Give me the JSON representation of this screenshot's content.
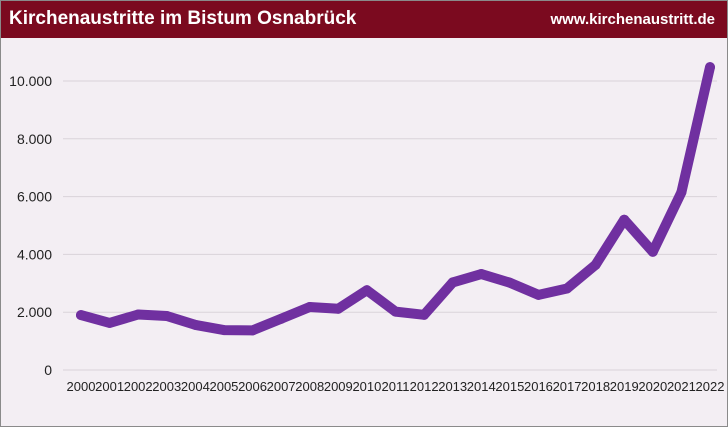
{
  "header": {
    "title": "Kirchenaustritte im Bistum Osnabrück",
    "site": "www.kirchenaustritt.de"
  },
  "colors": {
    "header_bg": "#7b0a1f",
    "plot_bg": "#f3eef3",
    "line": "#7030a0",
    "grid": "#d9d3d9"
  },
  "chart_data": {
    "type": "line",
    "title": "Kirchenaustritte im Bistum Osnabrück",
    "xlabel": "",
    "ylabel": "",
    "x": [
      "2000",
      "2001",
      "2002",
      "2003",
      "2004",
      "2005",
      "2006",
      "2007",
      "2008",
      "2009",
      "2010",
      "2011",
      "2012",
      "2013",
      "2014",
      "2015",
      "2016",
      "2017",
      "2018",
      "2019",
      "2020",
      "2021",
      "2022"
    ],
    "series": [
      {
        "values": [
          1900,
          1630,
          1920,
          1870,
          1560,
          1380,
          1370,
          1770,
          2180,
          2120,
          2760,
          2020,
          1910,
          3030,
          3320,
          3020,
          2600,
          2820,
          3640,
          5200,
          4090,
          6150,
          10480
        ]
      }
    ],
    "ylim": [
      0,
      10000
    ],
    "yticks": [
      0,
      2000,
      4000,
      6000,
      8000,
      10000
    ],
    "ytick_labels": [
      "0",
      "2.000",
      "4.000",
      "6.000",
      "8.000",
      "10.000"
    ],
    "grid": true,
    "legend": "none"
  }
}
